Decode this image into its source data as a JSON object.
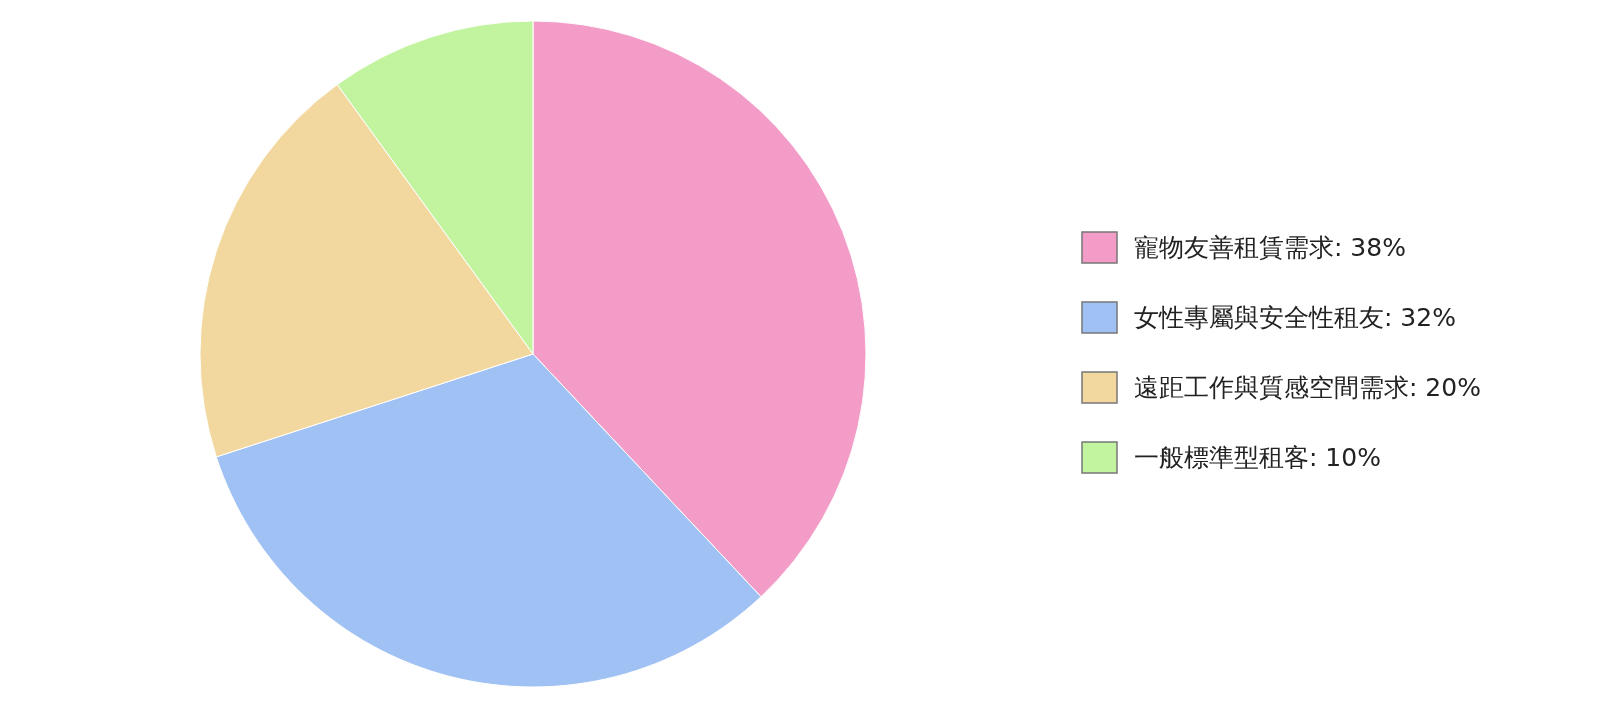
{
  "chart_data": {
    "type": "pie",
    "categories": [
      "寵物友善租賃需求: 38%",
      "女性專屬與安全性租友: 32%",
      "遠距工作與質感空間需求: 20%",
      "一般標準型租客: 10%"
    ],
    "values": [
      38,
      32,
      20,
      10
    ],
    "colors": [
      "#f29cc7",
      "#9fc1f4",
      "#f2d89e",
      "#c2f4a0"
    ],
    "legend": "right"
  }
}
